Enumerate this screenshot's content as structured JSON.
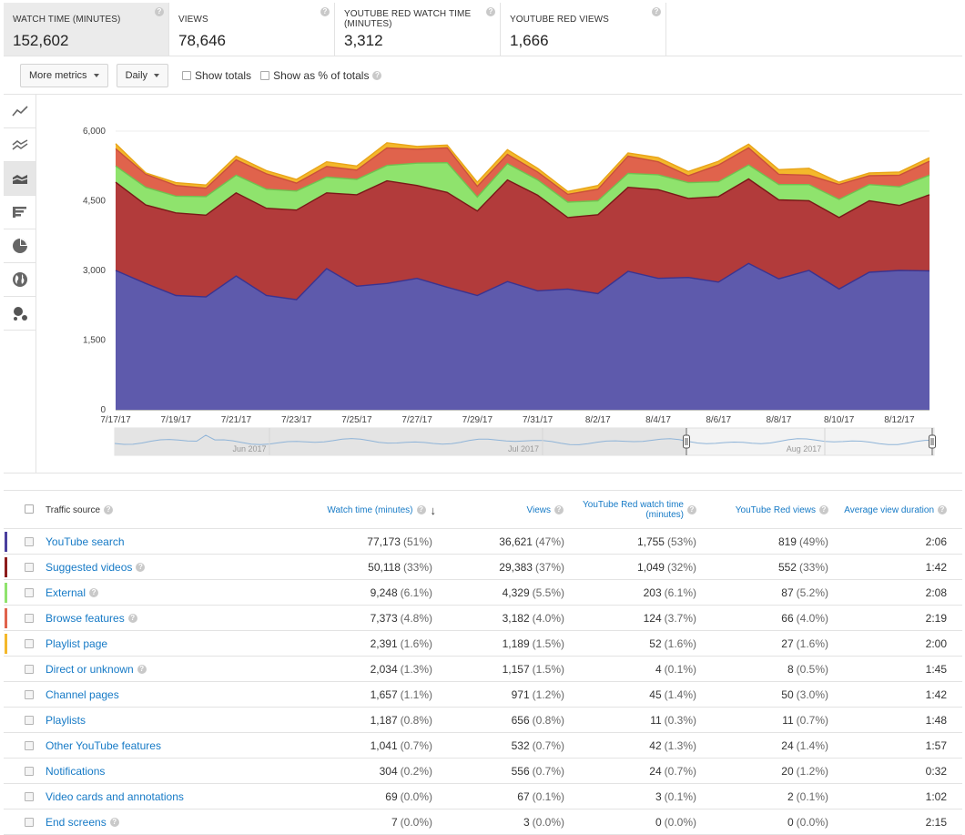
{
  "metrics": [
    {
      "label": "Watch time (minutes)",
      "value": "152,602"
    },
    {
      "label": "Views",
      "value": "78,646"
    },
    {
      "label": "YouTube Red watch time (minutes)",
      "value": "3,312"
    },
    {
      "label": "YouTube Red views",
      "value": "1,666"
    }
  ],
  "toolbar": {
    "more_metrics": "More metrics",
    "interval": "Daily",
    "show_totals": "Show totals",
    "show_pct": "Show as % of totals"
  },
  "help_glyph": "?",
  "rail_icons": [
    "line-chart-icon",
    "multi-line-chart-icon",
    "stacked-area-chart-icon",
    "bar-chart-icon",
    "pie-chart-icon",
    "globe-map-icon",
    "bubble-chart-icon"
  ],
  "navigator": {
    "labels": [
      "Jun 2017",
      "Jul 2017",
      "Aug 2017"
    ]
  },
  "chart_data": {
    "type": "area",
    "stacked": true,
    "y_ticks": [
      "6,000",
      "4,500",
      "3,000",
      "1,500",
      "0"
    ],
    "ylim": [
      0,
      6000
    ],
    "x_tick_labels": [
      "7/17/17",
      "7/19/17",
      "7/21/17",
      "7/23/17",
      "7/25/17",
      "7/27/17",
      "7/29/17",
      "7/31/17",
      "8/2/17",
      "8/4/17",
      "8/6/17",
      "8/8/17",
      "8/10/17",
      "8/12/17"
    ],
    "x": [
      "7/17/17",
      "7/18/17",
      "7/19/17",
      "7/20/17",
      "7/21/17",
      "7/22/17",
      "7/23/17",
      "7/24/17",
      "7/25/17",
      "7/26/17",
      "7/27/17",
      "7/28/17",
      "7/29/17",
      "7/30/17",
      "7/31/17",
      "8/1/17",
      "8/2/17",
      "8/3/17",
      "8/4/17",
      "8/5/17",
      "8/6/17",
      "8/7/17",
      "8/8/17",
      "8/9/17",
      "8/10/17",
      "8/11/17",
      "8/12/17",
      "8/13/17"
    ],
    "series": [
      {
        "name": "YouTube search",
        "color": "#5e5aac",
        "values": [
          3000,
          2720,
          2460,
          2430,
          2880,
          2460,
          2370,
          3040,
          2660,
          2720,
          2830,
          2640,
          2460,
          2760,
          2560,
          2600,
          2500,
          2980,
          2830,
          2850,
          2750,
          3150,
          2820,
          3000,
          2600,
          2960,
          3000,
          2990
        ]
      },
      {
        "name": "Suggested videos",
        "color": "#b23b3b",
        "values": [
          1900,
          1690,
          1780,
          1760,
          1790,
          1880,
          1930,
          1630,
          1970,
          2210,
          2000,
          2040,
          1820,
          2190,
          2060,
          1540,
          1700,
          1810,
          1910,
          1700,
          1840,
          1820,
          1700,
          1500,
          1540,
          1540,
          1400,
          1640
        ]
      },
      {
        "name": "External",
        "color": "#8fe36d",
        "values": [
          350,
          380,
          360,
          400,
          380,
          410,
          410,
          340,
          330,
          330,
          480,
          640,
          300,
          350,
          330,
          330,
          300,
          300,
          320,
          340,
          320,
          300,
          330,
          350,
          390,
          350,
          400,
          420
        ]
      },
      {
        "name": "Browse features",
        "color": "#e0634c",
        "values": [
          370,
          280,
          230,
          180,
          330,
          330,
          170,
          230,
          200,
          380,
          300,
          320,
          230,
          200,
          170,
          170,
          250,
          370,
          280,
          150,
          360,
          370,
          220,
          200,
          320,
          190,
          250,
          300
        ]
      },
      {
        "name": "Playlist page",
        "color": "#f4b82b",
        "values": [
          110,
          30,
          60,
          70,
          80,
          70,
          80,
          100,
          90,
          110,
          60,
          60,
          90,
          100,
          80,
          60,
          80,
          70,
          90,
          90,
          80,
          80,
          100,
          150,
          50,
          60,
          70,
          80
        ]
      }
    ]
  },
  "table": {
    "headers": {
      "source": "Traffic source",
      "watch_time": "Watch time (minutes)",
      "views": "Views",
      "red_watch_line1": "YouTube Red watch time",
      "red_watch_line2": "(minutes)",
      "red_views": "YouTube Red views",
      "avg_duration": "Average view duration",
      "sort_arrow": "↓"
    },
    "rows": [
      {
        "source": "YouTube search",
        "help": false,
        "color": "#4a3f9e",
        "watch": "77,173",
        "watch_pct": "(51%)",
        "views": "36,621",
        "views_pct": "(47%)",
        "red_watch": "1,755",
        "red_watch_pct": "(53%)",
        "red_views": "819",
        "red_views_pct": "(49%)",
        "avg": "2:06"
      },
      {
        "source": "Suggested videos",
        "help": true,
        "color": "#8c1c1c",
        "watch": "50,118",
        "watch_pct": "(33%)",
        "views": "29,383",
        "views_pct": "(37%)",
        "red_watch": "1,049",
        "red_watch_pct": "(32%)",
        "red_views": "552",
        "red_views_pct": "(33%)",
        "avg": "1:42"
      },
      {
        "source": "External",
        "help": true,
        "color": "#8fe36d",
        "watch": "9,248",
        "watch_pct": "(6.1%)",
        "views": "4,329",
        "views_pct": "(5.5%)",
        "red_watch": "203",
        "red_watch_pct": "(6.1%)",
        "red_views": "87",
        "red_views_pct": "(5.2%)",
        "avg": "2:08"
      },
      {
        "source": "Browse features",
        "help": true,
        "color": "#e0634c",
        "watch": "7,373",
        "watch_pct": "(4.8%)",
        "views": "3,182",
        "views_pct": "(4.0%)",
        "red_watch": "124",
        "red_watch_pct": "(3.7%)",
        "red_views": "66",
        "red_views_pct": "(4.0%)",
        "avg": "2:19"
      },
      {
        "source": "Playlist page",
        "help": false,
        "color": "#f4b82b",
        "watch": "2,391",
        "watch_pct": "(1.6%)",
        "views": "1,189",
        "views_pct": "(1.5%)",
        "red_watch": "52",
        "red_watch_pct": "(1.6%)",
        "red_views": "27",
        "red_views_pct": "(1.6%)",
        "avg": "2:00"
      },
      {
        "source": "Direct or unknown",
        "help": true,
        "color": "",
        "watch": "2,034",
        "watch_pct": "(1.3%)",
        "views": "1,157",
        "views_pct": "(1.5%)",
        "red_watch": "4",
        "red_watch_pct": "(0.1%)",
        "red_views": "8",
        "red_views_pct": "(0.5%)",
        "avg": "1:45"
      },
      {
        "source": "Channel pages",
        "help": false,
        "color": "",
        "watch": "1,657",
        "watch_pct": "(1.1%)",
        "views": "971",
        "views_pct": "(1.2%)",
        "red_watch": "45",
        "red_watch_pct": "(1.4%)",
        "red_views": "50",
        "red_views_pct": "(3.0%)",
        "avg": "1:42"
      },
      {
        "source": "Playlists",
        "help": false,
        "color": "",
        "watch": "1,187",
        "watch_pct": "(0.8%)",
        "views": "656",
        "views_pct": "(0.8%)",
        "red_watch": "11",
        "red_watch_pct": "(0.3%)",
        "red_views": "11",
        "red_views_pct": "(0.7%)",
        "avg": "1:48"
      },
      {
        "source": "Other YouTube features",
        "help": false,
        "color": "",
        "watch": "1,041",
        "watch_pct": "(0.7%)",
        "views": "532",
        "views_pct": "(0.7%)",
        "red_watch": "42",
        "red_watch_pct": "(1.3%)",
        "red_views": "24",
        "red_views_pct": "(1.4%)",
        "avg": "1:57"
      },
      {
        "source": "Notifications",
        "help": false,
        "color": "",
        "watch": "304",
        "watch_pct": "(0.2%)",
        "views": "556",
        "views_pct": "(0.7%)",
        "red_watch": "24",
        "red_watch_pct": "(0.7%)",
        "red_views": "20",
        "red_views_pct": "(1.2%)",
        "avg": "0:32"
      },
      {
        "source": "Video cards and annotations",
        "help": false,
        "color": "",
        "watch": "69",
        "watch_pct": "(0.0%)",
        "views": "67",
        "views_pct": "(0.1%)",
        "red_watch": "3",
        "red_watch_pct": "(0.1%)",
        "red_views": "2",
        "red_views_pct": "(0.1%)",
        "avg": "1:02"
      },
      {
        "source": "End screens",
        "help": true,
        "color": "",
        "watch": "7",
        "watch_pct": "(0.0%)",
        "views": "3",
        "views_pct": "(0.0%)",
        "red_watch": "0",
        "red_watch_pct": "(0.0%)",
        "red_views": "0",
        "red_views_pct": "(0.0%)",
        "avg": "2:15"
      }
    ]
  }
}
